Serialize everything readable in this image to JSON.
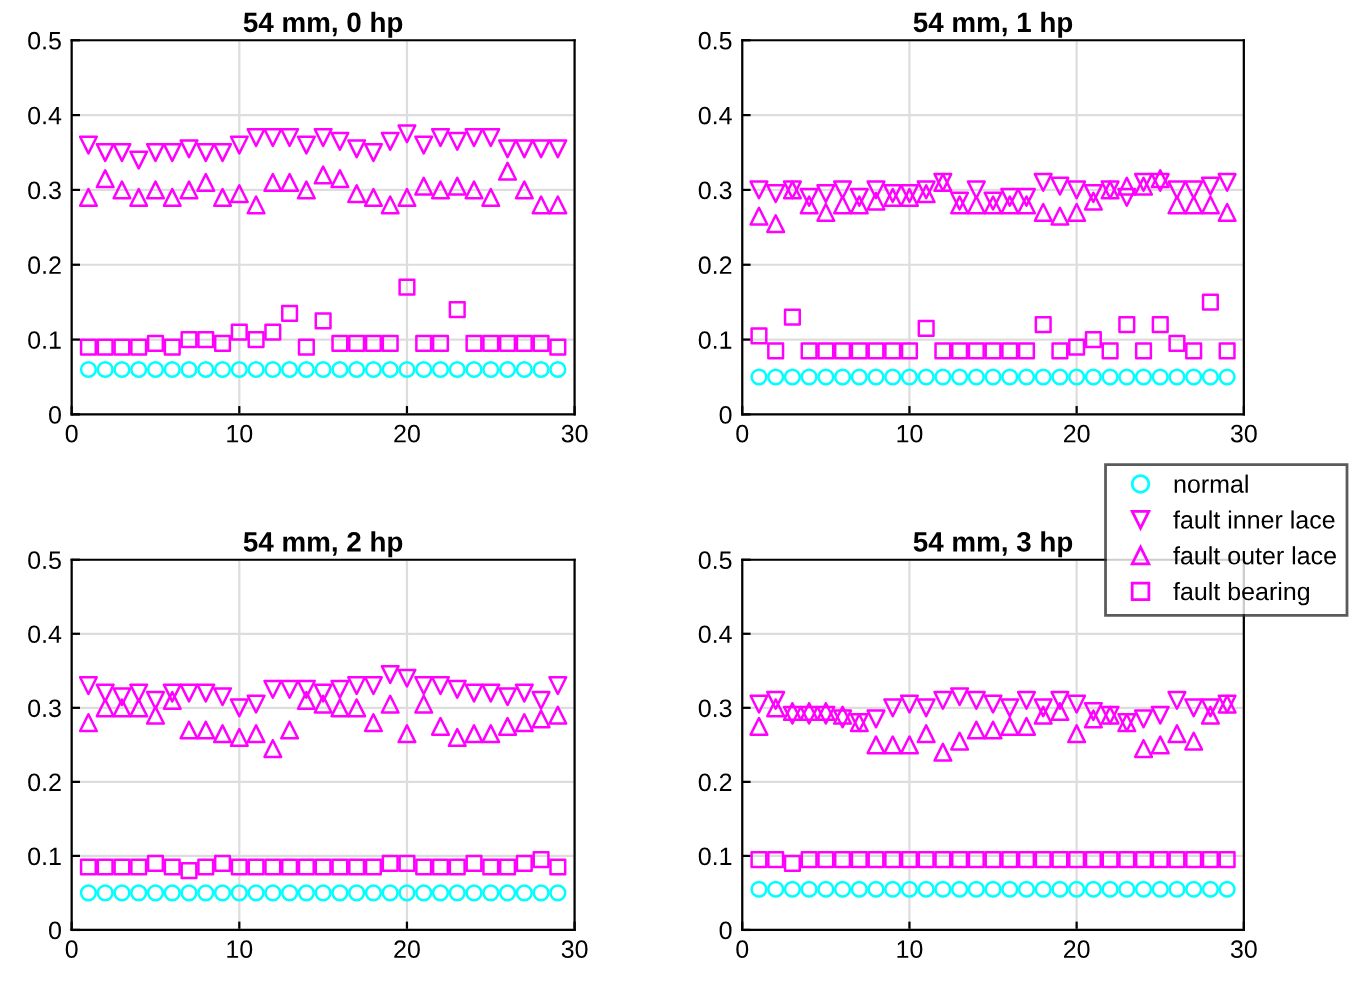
{
  "chart_data": [
    {
      "type": "scatter",
      "title": "54 mm, 0 hp",
      "x": [
        1,
        2,
        3,
        4,
        5,
        6,
        7,
        8,
        9,
        10,
        11,
        12,
        13,
        14,
        15,
        16,
        17,
        18,
        19,
        20,
        21,
        22,
        23,
        24,
        25,
        26,
        27,
        28,
        29
      ],
      "xlim": [
        0,
        30
      ],
      "xticks": [
        0,
        10,
        20,
        30
      ],
      "ylim": [
        0,
        0.5
      ],
      "yticks": [
        0,
        0.1,
        0.2,
        0.3,
        0.4,
        0.5
      ],
      "grid": true,
      "series": [
        {
          "color": "#00ffff",
          "marker": "circle",
          "values": [
            0.06,
            0.06,
            0.06,
            0.06,
            0.06,
            0.06,
            0.06,
            0.06,
            0.06,
            0.06,
            0.06,
            0.06,
            0.06,
            0.06,
            0.06,
            0.06,
            0.06,
            0.06,
            0.06,
            0.06,
            0.06,
            0.06,
            0.06,
            0.06,
            0.06,
            0.06,
            0.06,
            0.06,
            0.06
          ]
        },
        {
          "color": "#ff00ff",
          "marker": "triangle-down",
          "values": [
            0.36,
            0.35,
            0.35,
            0.34,
            0.35,
            0.35,
            0.355,
            0.35,
            0.35,
            0.36,
            0.37,
            0.37,
            0.37,
            0.36,
            0.37,
            0.365,
            0.355,
            0.35,
            0.365,
            0.375,
            0.36,
            0.37,
            0.365,
            0.37,
            0.37,
            0.355,
            0.355,
            0.355,
            0.355
          ]
        },
        {
          "color": "#ff00ff",
          "marker": "triangle",
          "values": [
            0.29,
            0.315,
            0.3,
            0.29,
            0.3,
            0.29,
            0.3,
            0.31,
            0.29,
            0.295,
            0.28,
            0.31,
            0.31,
            0.3,
            0.32,
            0.315,
            0.295,
            0.29,
            0.28,
            0.29,
            0.305,
            0.3,
            0.305,
            0.3,
            0.29,
            0.325,
            0.3,
            0.28,
            0.28
          ]
        },
        {
          "color": "#ff00ff",
          "marker": "square",
          "values": [
            0.09,
            0.09,
            0.09,
            0.09,
            0.095,
            0.09,
            0.1,
            0.1,
            0.095,
            0.11,
            0.1,
            0.11,
            0.135,
            0.09,
            0.125,
            0.095,
            0.095,
            0.095,
            0.095,
            0.17,
            0.095,
            0.095,
            0.14,
            0.095,
            0.095,
            0.095,
            0.095,
            0.095,
            0.09
          ]
        }
      ]
    },
    {
      "type": "scatter",
      "title": "54 mm, 1 hp",
      "x": [
        1,
        2,
        3,
        4,
        5,
        6,
        7,
        8,
        9,
        10,
        11,
        12,
        13,
        14,
        15,
        16,
        17,
        18,
        19,
        20,
        21,
        22,
        23,
        24,
        25,
        26,
        27,
        28,
        29
      ],
      "xlim": [
        0,
        30
      ],
      "xticks": [
        0,
        10,
        20,
        30
      ],
      "ylim": [
        0,
        0.5
      ],
      "yticks": [
        0,
        0.1,
        0.2,
        0.3,
        0.4,
        0.5
      ],
      "grid": true,
      "series": [
        {
          "color": "#00ffff",
          "marker": "circle",
          "values": [
            0.05,
            0.05,
            0.05,
            0.05,
            0.05,
            0.05,
            0.05,
            0.05,
            0.05,
            0.05,
            0.05,
            0.05,
            0.05,
            0.05,
            0.05,
            0.05,
            0.05,
            0.05,
            0.05,
            0.05,
            0.05,
            0.05,
            0.05,
            0.05,
            0.05,
            0.05,
            0.05,
            0.05,
            0.05
          ]
        },
        {
          "color": "#ff00ff",
          "marker": "triangle-down",
          "values": [
            0.3,
            0.295,
            0.3,
            0.29,
            0.295,
            0.3,
            0.29,
            0.3,
            0.295,
            0.295,
            0.3,
            0.31,
            0.285,
            0.3,
            0.285,
            0.29,
            0.29,
            0.31,
            0.305,
            0.3,
            0.295,
            0.3,
            0.29,
            0.31,
            0.31,
            0.3,
            0.3,
            0.305,
            0.31
          ]
        },
        {
          "color": "#ff00ff",
          "marker": "triangle",
          "values": [
            0.265,
            0.255,
            0.3,
            0.28,
            0.27,
            0.28,
            0.28,
            0.285,
            0.29,
            0.29,
            0.295,
            0.31,
            0.28,
            0.28,
            0.28,
            0.28,
            0.28,
            0.27,
            0.265,
            0.27,
            0.285,
            0.3,
            0.305,
            0.305,
            0.315,
            0.28,
            0.28,
            0.28,
            0.27
          ]
        },
        {
          "color": "#ff00ff",
          "marker": "square",
          "values": [
            0.105,
            0.085,
            0.13,
            0.085,
            0.085,
            0.085,
            0.085,
            0.085,
            0.085,
            0.085,
            0.115,
            0.085,
            0.085,
            0.085,
            0.085,
            0.085,
            0.085,
            0.12,
            0.085,
            0.09,
            0.1,
            0.085,
            0.12,
            0.085,
            0.12,
            0.095,
            0.085,
            0.15,
            0.085
          ]
        }
      ]
    },
    {
      "type": "scatter",
      "title": "54 mm, 2 hp",
      "x": [
        1,
        2,
        3,
        4,
        5,
        6,
        7,
        8,
        9,
        10,
        11,
        12,
        13,
        14,
        15,
        16,
        17,
        18,
        19,
        20,
        21,
        22,
        23,
        24,
        25,
        26,
        27,
        28,
        29
      ],
      "xlim": [
        0,
        30
      ],
      "xticks": [
        0,
        10,
        20,
        30
      ],
      "ylim": [
        0,
        0.5
      ],
      "yticks": [
        0,
        0.1,
        0.2,
        0.3,
        0.4,
        0.5
      ],
      "grid": true,
      "series": [
        {
          "color": "#00ffff",
          "marker": "circle",
          "values": [
            0.05,
            0.05,
            0.05,
            0.05,
            0.05,
            0.05,
            0.05,
            0.05,
            0.05,
            0.05,
            0.05,
            0.05,
            0.05,
            0.05,
            0.05,
            0.05,
            0.05,
            0.05,
            0.05,
            0.05,
            0.05,
            0.05,
            0.05,
            0.05,
            0.05,
            0.05,
            0.05,
            0.05,
            0.05
          ]
        },
        {
          "color": "#ff00ff",
          "marker": "triangle-down",
          "values": [
            0.33,
            0.32,
            0.315,
            0.32,
            0.31,
            0.32,
            0.32,
            0.32,
            0.315,
            0.3,
            0.305,
            0.325,
            0.325,
            0.325,
            0.32,
            0.325,
            0.33,
            0.33,
            0.345,
            0.34,
            0.33,
            0.33,
            0.325,
            0.32,
            0.32,
            0.315,
            0.32,
            0.31,
            0.33
          ]
        },
        {
          "color": "#ff00ff",
          "marker": "triangle",
          "values": [
            0.28,
            0.3,
            0.3,
            0.3,
            0.29,
            0.31,
            0.27,
            0.27,
            0.265,
            0.26,
            0.265,
            0.245,
            0.27,
            0.31,
            0.305,
            0.3,
            0.3,
            0.28,
            0.305,
            0.265,
            0.305,
            0.275,
            0.26,
            0.265,
            0.265,
            0.275,
            0.28,
            0.285,
            0.29
          ]
        },
        {
          "color": "#ff00ff",
          "marker": "square",
          "values": [
            0.085,
            0.085,
            0.085,
            0.085,
            0.09,
            0.085,
            0.08,
            0.085,
            0.09,
            0.085,
            0.085,
            0.085,
            0.085,
            0.085,
            0.085,
            0.085,
            0.085,
            0.085,
            0.09,
            0.09,
            0.085,
            0.085,
            0.085,
            0.09,
            0.085,
            0.085,
            0.09,
            0.095,
            0.085
          ]
        }
      ]
    },
    {
      "type": "scatter",
      "title": "54 mm, 3 hp",
      "x": [
        1,
        2,
        3,
        4,
        5,
        6,
        7,
        8,
        9,
        10,
        11,
        12,
        13,
        14,
        15,
        16,
        17,
        18,
        19,
        20,
        21,
        22,
        23,
        24,
        25,
        26,
        27,
        28,
        29
      ],
      "xlim": [
        0,
        30
      ],
      "xticks": [
        0,
        10,
        20,
        30
      ],
      "ylim": [
        0,
        0.5
      ],
      "yticks": [
        0,
        0.1,
        0.2,
        0.3,
        0.4,
        0.5
      ],
      "grid": true,
      "legend": "right",
      "series": [
        {
          "name": "normal",
          "color": "#00ffff",
          "marker": "circle",
          "values": [
            0.055,
            0.055,
            0.055,
            0.055,
            0.055,
            0.055,
            0.055,
            0.055,
            0.055,
            0.055,
            0.055,
            0.055,
            0.055,
            0.055,
            0.055,
            0.055,
            0.055,
            0.055,
            0.055,
            0.055,
            0.055,
            0.055,
            0.055,
            0.055,
            0.055,
            0.055,
            0.055,
            0.055,
            0.055
          ]
        },
        {
          "name": "fault inner lace",
          "color": "#ff00ff",
          "marker": "triangle-down",
          "values": [
            0.305,
            0.31,
            0.29,
            0.29,
            0.29,
            0.285,
            0.28,
            0.285,
            0.3,
            0.305,
            0.3,
            0.31,
            0.315,
            0.31,
            0.305,
            0.3,
            0.31,
            0.3,
            0.31,
            0.305,
            0.295,
            0.29,
            0.28,
            0.285,
            0.29,
            0.31,
            0.3,
            0.3,
            0.305
          ]
        },
        {
          "name": "fault outer lace",
          "color": "#ff00ff",
          "marker": "triangle",
          "values": [
            0.275,
            0.3,
            0.295,
            0.295,
            0.295,
            0.29,
            0.28,
            0.25,
            0.25,
            0.25,
            0.265,
            0.24,
            0.255,
            0.27,
            0.27,
            0.275,
            0.275,
            0.29,
            0.295,
            0.265,
            0.285,
            0.29,
            0.28,
            0.245,
            0.25,
            0.265,
            0.255,
            0.29,
            0.305
          ]
        },
        {
          "name": "fault bearing",
          "color": "#ff00ff",
          "marker": "square",
          "values": [
            0.095,
            0.095,
            0.09,
            0.095,
            0.095,
            0.095,
            0.095,
            0.095,
            0.095,
            0.095,
            0.095,
            0.095,
            0.095,
            0.095,
            0.095,
            0.095,
            0.095,
            0.095,
            0.095,
            0.095,
            0.095,
            0.095,
            0.095,
            0.095,
            0.095,
            0.095,
            0.095,
            0.095,
            0.095
          ]
        }
      ]
    }
  ]
}
